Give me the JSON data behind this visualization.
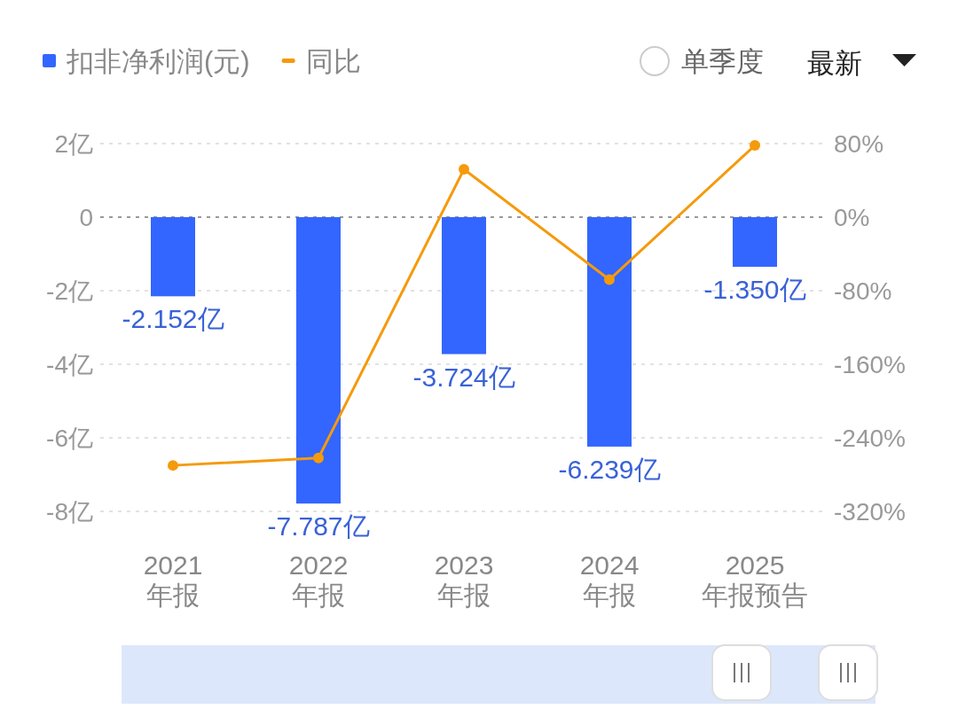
{
  "chart_data": {
    "type": "bar",
    "categories": [
      "2021\n年报",
      "2022\n年报",
      "2023\n年报",
      "2024\n年报",
      "2025\n年报预告"
    ],
    "series": [
      {
        "name": "扣非净利润(元)",
        "color": "#3366ff",
        "values": [
          -2.152,
          -7.787,
          -3.724,
          -6.239,
          -1.35
        ],
        "value_labels": [
          "-2.152亿",
          "-7.787亿",
          "-3.724亿",
          "-6.239亿",
          "-1.350亿"
        ]
      },
      {
        "name": "同比",
        "type": "line",
        "axis": "y2",
        "color": "#f59a0c",
        "values": [
          -270,
          -262,
          52,
          -68,
          78
        ]
      }
    ],
    "ylim": [
      -8,
      2
    ],
    "yticks": [
      {
        "value": -8,
        "label": "-8亿"
      },
      {
        "value": -6,
        "label": "-6亿"
      },
      {
        "value": -4,
        "label": "-4亿"
      },
      {
        "value": -2,
        "label": "-2亿"
      },
      0,
      {
        "value": 2,
        "label": "2亿"
      }
    ],
    "y2lim": [
      -320,
      80
    ],
    "y2ticks": [
      {
        "value": -320,
        "label": "-320%"
      },
      {
        "value": -240,
        "label": "-240%"
      },
      {
        "value": -160,
        "label": "-160%"
      },
      {
        "value": -80,
        "label": "-80%"
      },
      {
        "value": 0,
        "label": "0%"
      },
      {
        "value": 80,
        "label": "80%"
      }
    ],
    "ref_lines": [
      {
        "axis": "y",
        "value": 0,
        "color": "#999999",
        "line_style": "dotted"
      }
    ],
    "grid": "y",
    "legend": "top left",
    "marker": "circle",
    "annotations": [
      "单季度",
      "最新"
    ]
  }
}
